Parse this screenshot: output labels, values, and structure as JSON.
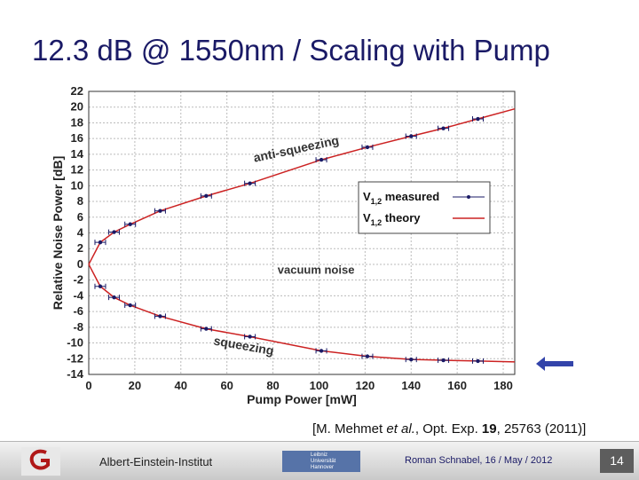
{
  "slide": {
    "title": "12.3 dB @ 1550nm / Scaling with Pump",
    "citation_prefix": "[M. Mehmet ",
    "citation_etal": "et al.",
    "citation_mid": ", Opt. Exp. ",
    "citation_vol": "19",
    "citation_suffix": ", 25763 (2011)]",
    "footer": {
      "institute": "Albert-Einstein-Institut",
      "author_date": "Roman Schnabel, 16 / May / 2012",
      "page_number": "14",
      "uni_logo_lines": [
        "Leibniz",
        "Universität",
        "Hannover"
      ]
    },
    "colors": {
      "title": "#1a1a66",
      "arrow": "#3344aa",
      "theory": "#cc2222",
      "measured": "#1a1a66"
    }
  },
  "chart_data": {
    "type": "scatter",
    "xlabel": "Pump Power [mW]",
    "ylabel": "Relative Noise Power [dB]",
    "xlim": [
      0,
      185
    ],
    "ylim": [
      -14,
      22
    ],
    "xticks": [
      0,
      20,
      40,
      60,
      80,
      100,
      120,
      140,
      160,
      180
    ],
    "yticks": [
      -14,
      -12,
      -10,
      -8,
      -6,
      -4,
      -2,
      0,
      2,
      4,
      6,
      8,
      10,
      12,
      14,
      16,
      18,
      20,
      22
    ],
    "grid": true,
    "legend_position": "right",
    "legend": [
      {
        "label_main": "V",
        "label_sub": "1,2",
        "label_rest": " measured",
        "style": "points"
      },
      {
        "label_main": "V",
        "label_sub": "1,2",
        "label_rest": " theory",
        "style": "line"
      }
    ],
    "annotations": [
      "anti-squeezing",
      "vacuum noise",
      "squeezing"
    ],
    "series": [
      {
        "name": "V1,2 measured (anti-squeezing)",
        "x": [
          5,
          11,
          18,
          31,
          51,
          70,
          101,
          121,
          140,
          154,
          169
        ],
        "y": [
          2.8,
          4.1,
          5.1,
          6.8,
          8.7,
          10.3,
          13.3,
          14.9,
          16.3,
          17.3,
          18.5
        ]
      },
      {
        "name": "V1,2 measured (squeezing)",
        "x": [
          5,
          11,
          18,
          31,
          51,
          70,
          101,
          121,
          140,
          154,
          169
        ],
        "y": [
          -2.8,
          -4.2,
          -5.2,
          -6.6,
          -8.2,
          -9.2,
          -11.0,
          -11.7,
          -12.1,
          -12.2,
          -12.3
        ]
      }
    ]
  }
}
